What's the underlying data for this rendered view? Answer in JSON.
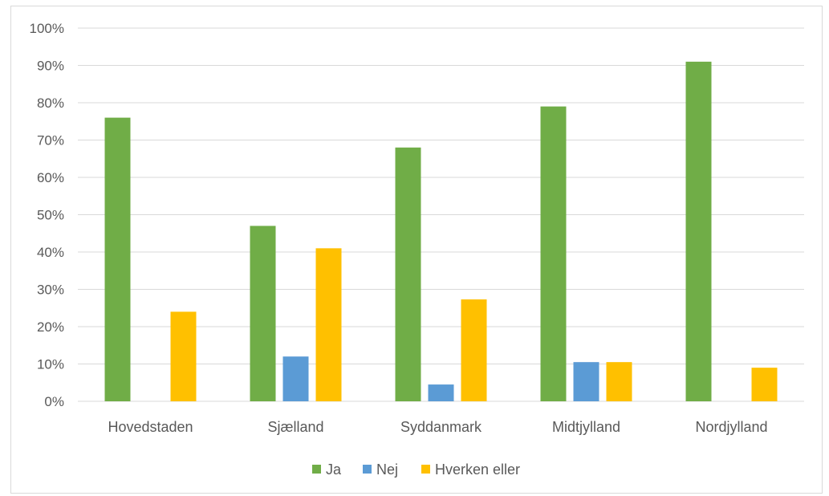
{
  "chart_data": {
    "type": "bar",
    "categories": [
      "Hovedstaden",
      "Sjælland",
      "Syddanmark",
      "Midtjylland",
      "Nordjylland"
    ],
    "series": [
      {
        "name": "Ja",
        "color": "#70ad47",
        "values": [
          76,
          47,
          68,
          79,
          91
        ]
      },
      {
        "name": "Nej",
        "color": "#5b9bd5",
        "values": [
          0,
          12,
          4.5,
          10.5,
          0
        ]
      },
      {
        "name": "Hverken eller",
        "color": "#ffc000",
        "values": [
          24,
          41,
          27.3,
          10.5,
          9
        ]
      }
    ],
    "y_ticks": [
      "0%",
      "10%",
      "20%",
      "30%",
      "40%",
      "50%",
      "60%",
      "70%",
      "80%",
      "90%",
      "100%"
    ],
    "ylim": [
      0,
      100
    ],
    "grid": true,
    "legend_position": "bottom"
  }
}
